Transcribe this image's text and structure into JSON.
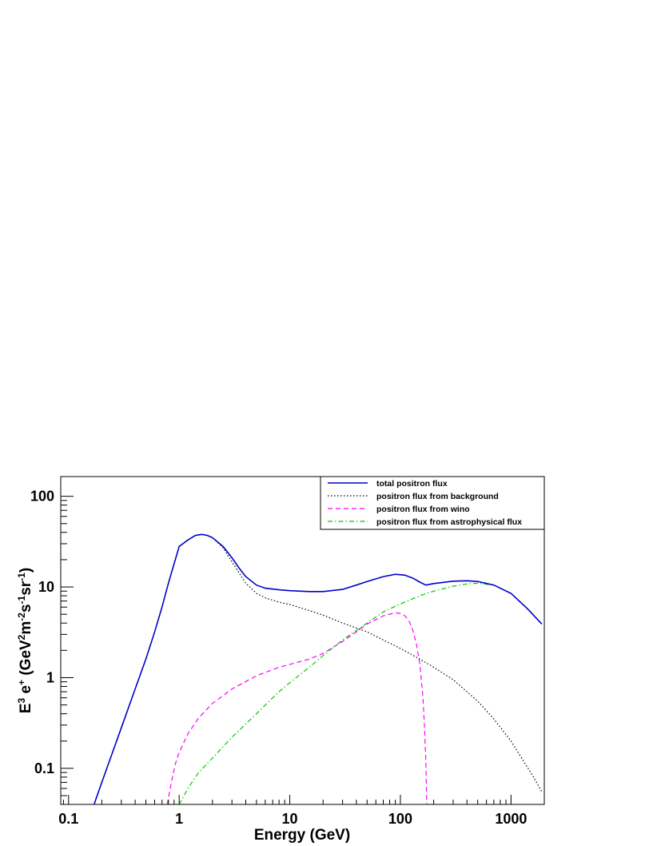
{
  "chart_data": {
    "type": "line",
    "title": "",
    "xlabel": "Energy (GeV)",
    "ylabel": {
      "prefix": "E",
      "prefix_sup": "3",
      "particle": " e",
      "particle_sup": "+",
      "units_open": " (GeV",
      "u1_sup": "2",
      "u2": "m",
      "u2_sup": "-2",
      "u3": "s",
      "u3_sup": "-1",
      "u4": "sr",
      "u4_sup": "-1",
      "units_close": ")"
    },
    "x_scale": "log",
    "y_scale": "log",
    "xlim": [
      0.085,
      2000
    ],
    "ylim": [
      0.04,
      165
    ],
    "x_ticks": [
      {
        "value": 0.1,
        "label": "0.1"
      },
      {
        "value": 1,
        "label": "1"
      },
      {
        "value": 10,
        "label": "10"
      },
      {
        "value": 100,
        "label": "100"
      },
      {
        "value": 1000,
        "label": "1000"
      }
    ],
    "y_ticks": [
      {
        "value": 0.1,
        "label": "0.1"
      },
      {
        "value": 1,
        "label": "1"
      },
      {
        "value": 10,
        "label": "10"
      },
      {
        "value": 100,
        "label": "100"
      }
    ],
    "grid": false,
    "legend_position": "top-right",
    "series": [
      {
        "name": "total positron flux",
        "color": "#0000cc",
        "style": "solid",
        "points": [
          [
            0.17,
            0.04
          ],
          [
            0.2,
            0.07
          ],
          [
            0.25,
            0.15
          ],
          [
            0.3,
            0.28
          ],
          [
            0.4,
            0.75
          ],
          [
            0.5,
            1.6
          ],
          [
            0.6,
            3.2
          ],
          [
            0.7,
            6.0
          ],
          [
            0.8,
            11
          ],
          [
            0.9,
            18
          ],
          [
            1.0,
            28
          ],
          [
            1.2,
            33
          ],
          [
            1.4,
            37
          ],
          [
            1.6,
            38
          ],
          [
            1.8,
            37
          ],
          [
            2.0,
            35
          ],
          [
            2.5,
            28
          ],
          [
            3.0,
            21
          ],
          [
            3.5,
            16
          ],
          [
            4.0,
            13
          ],
          [
            5.0,
            10.5
          ],
          [
            6.0,
            9.7
          ],
          [
            8.0,
            9.3
          ],
          [
            10,
            9.1
          ],
          [
            15,
            8.9
          ],
          [
            20,
            8.9
          ],
          [
            30,
            9.4
          ],
          [
            40,
            10.5
          ],
          [
            50,
            11.5
          ],
          [
            70,
            13
          ],
          [
            90,
            13.8
          ],
          [
            110,
            13.5
          ],
          [
            130,
            12.5
          ],
          [
            150,
            11.3
          ],
          [
            170,
            10.5
          ],
          [
            200,
            10.9
          ],
          [
            300,
            11.6
          ],
          [
            400,
            11.7
          ],
          [
            500,
            11.5
          ],
          [
            700,
            10.5
          ],
          [
            1000,
            8.5
          ],
          [
            1400,
            5.8
          ],
          [
            1900,
            3.9
          ]
        ]
      },
      {
        "name": "positron flux from background",
        "color": "#000000",
        "style": "dotted",
        "points": [
          [
            1.0,
            28
          ],
          [
            1.2,
            33
          ],
          [
            1.4,
            37
          ],
          [
            1.6,
            38
          ],
          [
            1.8,
            37
          ],
          [
            2.0,
            35
          ],
          [
            2.5,
            27
          ],
          [
            3.0,
            19
          ],
          [
            4.0,
            11
          ],
          [
            5.0,
            8.5
          ],
          [
            6.0,
            7.6
          ],
          [
            8.0,
            6.8
          ],
          [
            10,
            6.4
          ],
          [
            15,
            5.5
          ],
          [
            20,
            4.9
          ],
          [
            30,
            4.0
          ],
          [
            50,
            3.2
          ],
          [
            70,
            2.6
          ],
          [
            100,
            2.1
          ],
          [
            150,
            1.6
          ],
          [
            200,
            1.3
          ],
          [
            300,
            0.95
          ],
          [
            500,
            0.55
          ],
          [
            700,
            0.35
          ],
          [
            1000,
            0.2
          ],
          [
            1300,
            0.12
          ],
          [
            1600,
            0.08
          ],
          [
            1900,
            0.055
          ]
        ]
      },
      {
        "name": "positron flux from wino",
        "color": "#ff00ff",
        "style": "dashed",
        "points": [
          [
            0.78,
            0.04
          ],
          [
            0.85,
            0.07
          ],
          [
            0.92,
            0.11
          ],
          [
            1.0,
            0.15
          ],
          [
            1.2,
            0.24
          ],
          [
            1.5,
            0.36
          ],
          [
            2.0,
            0.52
          ],
          [
            3.0,
            0.75
          ],
          [
            5.0,
            1.05
          ],
          [
            8.0,
            1.3
          ],
          [
            10,
            1.4
          ],
          [
            15,
            1.6
          ],
          [
            20,
            1.85
          ],
          [
            30,
            2.5
          ],
          [
            40,
            3.2
          ],
          [
            50,
            3.9
          ],
          [
            70,
            4.8
          ],
          [
            90,
            5.2
          ],
          [
            100,
            5.1
          ],
          [
            110,
            4.8
          ],
          [
            120,
            4.2
          ],
          [
            130,
            3.3
          ],
          [
            140,
            2.3
          ],
          [
            150,
            1.4
          ],
          [
            160,
            0.6
          ],
          [
            165,
            0.3
          ],
          [
            170,
            0.12
          ],
          [
            173,
            0.04
          ]
        ]
      },
      {
        "name": "positron flux from astrophysical flux",
        "color": "#00cc00",
        "style": "dashdot",
        "points": [
          [
            1.0,
            0.04
          ],
          [
            1.2,
            0.06
          ],
          [
            1.5,
            0.09
          ],
          [
            2.0,
            0.13
          ],
          [
            3.0,
            0.22
          ],
          [
            5.0,
            0.4
          ],
          [
            8.0,
            0.7
          ],
          [
            10,
            0.88
          ],
          [
            15,
            1.3
          ],
          [
            20,
            1.75
          ],
          [
            30,
            2.6
          ],
          [
            50,
            4.0
          ],
          [
            70,
            5.3
          ],
          [
            100,
            6.5
          ],
          [
            150,
            8.0
          ],
          [
            200,
            9.0
          ],
          [
            300,
            10.2
          ],
          [
            400,
            10.8
          ],
          [
            500,
            11.0
          ],
          [
            700,
            10.5
          ],
          [
            1000,
            8.5
          ],
          [
            1400,
            5.8
          ],
          [
            1900,
            3.9
          ]
        ]
      }
    ]
  }
}
